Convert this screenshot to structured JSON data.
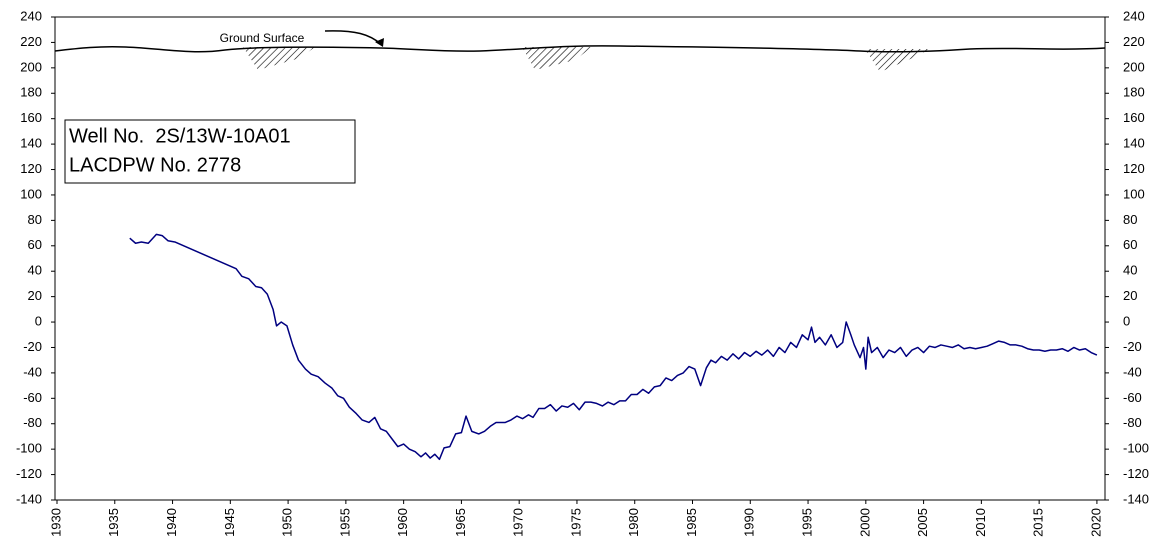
{
  "chart_data": {
    "type": "line",
    "annotations": [
      "Ground Surface",
      "Well No.  2S/13W-10A01",
      "LACDPW No. 2778"
    ],
    "x": [
      1936.3,
      1936.8,
      1937.3,
      1937.9,
      1938.6,
      1939.1,
      1939.6,
      1940.2,
      1945.5,
      1946,
      1946.6,
      1947.2,
      1947.7,
      1948.2,
      1948.7,
      1949,
      1949.4,
      1949.9,
      1950.4,
      1950.9,
      1951.5,
      1952,
      1952.6,
      1953.2,
      1953.8,
      1954.3,
      1954.8,
      1955.3,
      1955.9,
      1956.4,
      1957,
      1957.5,
      1958,
      1958.5,
      1959,
      1959.5,
      1960,
      1960.5,
      1961,
      1961.5,
      1961.9,
      1962.3,
      1962.7,
      1963.1,
      1963.5,
      1964,
      1964.5,
      1965,
      1965.4,
      1965.9,
      1966.5,
      1967,
      1967.5,
      1968,
      1968.8,
      1969.3,
      1969.8,
      1970.3,
      1970.8,
      1971.2,
      1971.7,
      1972.2,
      1972.7,
      1973.2,
      1973.7,
      1974.2,
      1974.7,
      1975.2,
      1975.7,
      1976.2,
      1976.7,
      1977.2,
      1977.7,
      1978.2,
      1978.7,
      1979.2,
      1979.7,
      1980.2,
      1980.7,
      1981.2,
      1981.7,
      1982.2,
      1982.7,
      1983.2,
      1983.7,
      1984.2,
      1984.7,
      1985.2,
      1985.7,
      1986.2,
      1986.6,
      1987,
      1987.5,
      1988,
      1988.5,
      1989,
      1989.5,
      1990,
      1990.5,
      1991,
      1991.5,
      1992,
      1992.5,
      1993,
      1993.5,
      1994,
      1994.5,
      1995,
      1995.3,
      1995.6,
      1996,
      1996.5,
      1997,
      1997.5,
      1998,
      1998.3,
      1998.7,
      1999,
      1999.5,
      1999.8,
      2000,
      2000.2,
      2000.5,
      2001,
      2001.5,
      2002,
      2002.5,
      2003,
      2003.5,
      2004,
      2004.5,
      2005,
      2005.5,
      2006,
      2006.5,
      2007,
      2007.5,
      2008,
      2008.5,
      2009,
      2009.5,
      2010,
      2010.5,
      2011,
      2011.5,
      2012,
      2012.5,
      2013,
      2013.5,
      2014,
      2014.5,
      2015,
      2015.5,
      2016,
      2016.5,
      2017,
      2017.5,
      2018,
      2018.5,
      2019,
      2019.5,
      2020
    ],
    "series": [
      {
        "color": "#000080",
        "values": [
          66,
          62,
          63,
          62,
          69,
          68,
          64,
          63,
          42,
          36,
          34,
          28,
          27,
          22,
          10,
          -3,
          0,
          -3,
          -18,
          -30,
          -37,
          -41,
          -43,
          -48,
          -52,
          -58,
          -60,
          -67,
          -72,
          -77,
          -79,
          -75,
          -84,
          -86,
          -92,
          -98,
          -96,
          -100,
          -102,
          -106,
          -103,
          -107,
          -104,
          -108,
          -99,
          -98,
          -88,
          -87,
          -74,
          -86,
          -88,
          -86,
          -82,
          -79,
          -79,
          -77,
          -74,
          -76,
          -73,
          -75,
          -68,
          -68,
          -65,
          -70,
          -66,
          -67,
          -64,
          -69,
          -63,
          -63,
          -64,
          -66,
          -63,
          -65,
          -62,
          -62,
          -57,
          -57,
          -53,
          -56,
          -51,
          -50,
          -44,
          -46,
          -42,
          -40,
          -35,
          -37,
          -50,
          -36,
          -30,
          -32,
          -27,
          -30,
          -25,
          -29,
          -24,
          -27,
          -23,
          -26,
          -22,
          -27,
          -20,
          -24,
          -16,
          -20,
          -10,
          -14,
          -4,
          -16,
          -12,
          -18,
          -10,
          -20,
          -16,
          0,
          -10,
          -18,
          -28,
          -20,
          -37,
          -12,
          -24,
          -20,
          -28,
          -22,
          -24,
          -20,
          -27,
          -22,
          -20,
          -24,
          -19,
          -20,
          -18,
          -19,
          -20,
          -18,
          -21,
          -20,
          -21,
          -20,
          -19,
          -17,
          -15,
          -16,
          -18,
          -18,
          -19,
          -21,
          -22,
          -22,
          -23,
          -22,
          -22,
          -21,
          -23,
          -20,
          -22,
          -21,
          -24,
          -26
        ]
      }
    ],
    "xlim": [
      1930,
      2020.7
    ],
    "xticks": [
      1930,
      1935,
      1940,
      1945,
      1950,
      1955,
      1960,
      1965,
      1970,
      1975,
      1980,
      1985,
      1990,
      1995,
      2000,
      2005,
      2010,
      2015,
      2020
    ],
    "ylim": [
      -140,
      240
    ],
    "yticks": [
      -140,
      -120,
      -100,
      -80,
      -60,
      -40,
      -20,
      0,
      20,
      40,
      60,
      80,
      100,
      120,
      140,
      160,
      180,
      200,
      220,
      240
    ],
    "y2lim": [
      -140,
      240
    ],
    "y2ticks": [
      -140,
      -120,
      -100,
      -80,
      -60,
      -40,
      -20,
      0,
      20,
      40,
      60,
      80,
      100,
      120,
      140,
      160,
      180,
      200,
      220,
      240
    ]
  }
}
